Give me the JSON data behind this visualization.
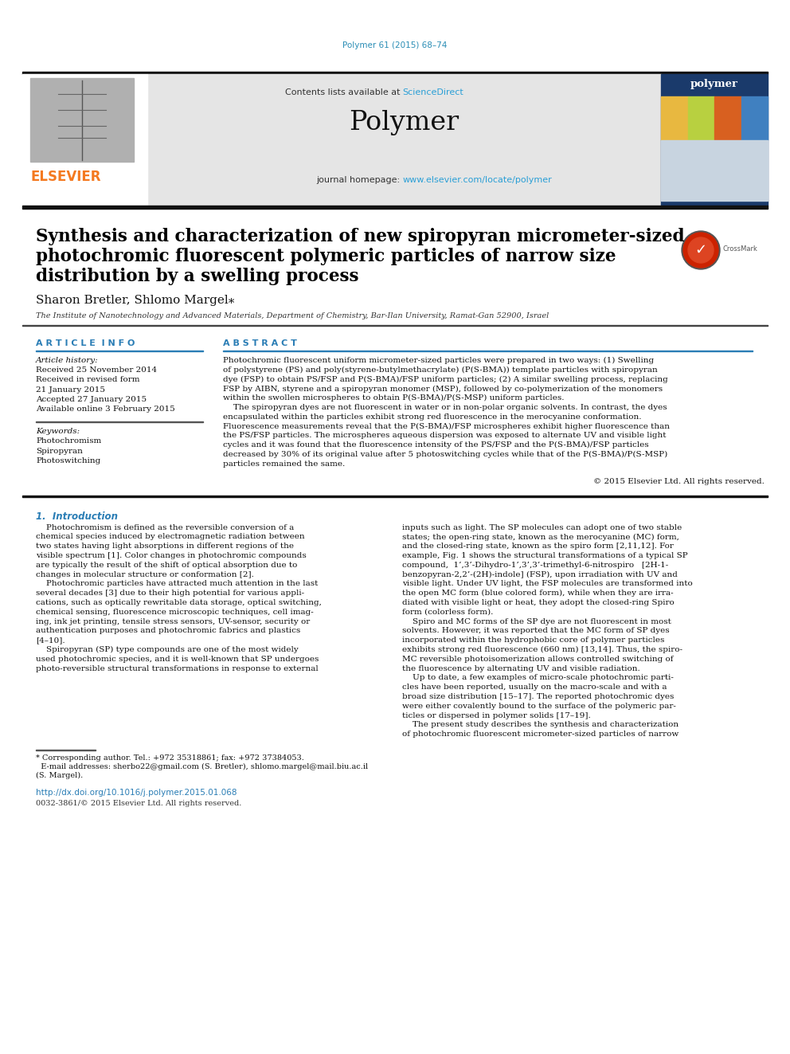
{
  "page_bg": "#ffffff",
  "journal_ref": "Polymer 61 (2015) 68–74",
  "journal_ref_color": "#2a8db5",
  "header_bg": "#e5e5e5",
  "sciencedirect_color": "#2a9fd6",
  "journal_homepage_url": "www.elsevier.com/locate/polymer",
  "journal_homepage_url_color": "#2a9fd6",
  "elsevier_color": "#f47920",
  "section_color": "#2a7db5",
  "title_line1": "Synthesis and characterization of new spiropyran micrometer-sized",
  "title_line2": "photochromic fluorescent polymeric particles of narrow size",
  "title_line3": "distribution by a swelling process",
  "title_fontsize": 15.5,
  "authors": "Sharon Bretler, Shlomo Margel",
  "authors_fontsize": 11,
  "affiliation": "The Institute of Nanotechnology and Advanced Materials, Department of Chemistry, Bar-Ilan University, Ramat-Gan 52900, Israel",
  "affiliation_fontsize": 7.0,
  "article_info_label": "A R T I C L E  I N F O",
  "abstract_label": "A B S T R A C T",
  "article_history_label": "Article history:",
  "received_label": "Received 25 November 2014",
  "revised_label": "Received in revised form",
  "revised_date": "21 January 2015",
  "accepted_label": "Accepted 27 January 2015",
  "available_label": "Available online 3 February 2015",
  "keywords_label": "Keywords:",
  "keyword1": "Photochromism",
  "keyword2": "Spiropyran",
  "keyword3": "Photoswitching",
  "copyright": "© 2015 Elsevier Ltd. All rights reserved.",
  "intro_header": "1.  Introduction",
  "doi_text": "http://dx.doi.org/10.1016/j.polymer.2015.01.068",
  "doi_color": "#2a7db5",
  "issn_text": "0032-3861/© 2015 Elsevier Ltd. All rights reserved.",
  "abstract_lines": [
    "Photochromic fluorescent uniform micrometer-sized particles were prepared in two ways: (1) Swelling",
    "of polystyrene (PS) and poly(styrene-butylmethacrylate) (P(S-BMA)) template particles with spiropyran",
    "dye (FSP) to obtain PS/FSP and P(S-BMA)/FSP uniform particles; (2) A similar swelling process, replacing",
    "FSP by AIBN, styrene and a spiropyran monomer (MSP), followed by co-polymerization of the monomers",
    "within the swollen microspheres to obtain P(S-BMA)/P(S-MSP) uniform particles.",
    "    The spiropyran dyes are not fluorescent in water or in non-polar organic solvents. In contrast, the dyes",
    "encapsulated within the particles exhibit strong red fluorescence in the merocyanine conformation.",
    "Fluorescence measurements reveal that the P(S-BMA)/FSP microspheres exhibit higher fluorescence than",
    "the PS/FSP particles. The microspheres aqueous dispersion was exposed to alternate UV and visible light",
    "cycles and it was found that the fluorescence intensity of the PS/FSP and the P(S-BMA)/FSP particles",
    "decreased by 30% of its original value after 5 photoswitching cycles while that of the P(S-BMA)/P(S-MSP)",
    "particles remained the same."
  ],
  "left_intro": [
    "    Photochromism is defined as the reversible conversion of a",
    "chemical species induced by electromagnetic radiation between",
    "two states having light absorptions in different regions of the",
    "visible spectrum [1]. Color changes in photochromic compounds",
    "are typically the result of the shift of optical absorption due to",
    "changes in molecular structure or conformation [2].",
    "    Photochromic particles have attracted much attention in the last",
    "several decades [3] due to their high potential for various appli-",
    "cations, such as optically rewritable data storage, optical switching,",
    "chemical sensing, fluorescence microscopic techniques, cell imag-",
    "ing, ink jet printing, tensile stress sensors, UV-sensor, security or",
    "authentication purposes and photochromic fabrics and plastics",
    "[4–10].",
    "    Spiropyran (SP) type compounds are one of the most widely",
    "used photochromic species, and it is well-known that SP undergoes",
    "photo-reversible structural transformations in response to external"
  ],
  "right_intro": [
    "inputs such as light. The SP molecules can adopt one of two stable",
    "states; the open-ring state, known as the merocyanine (MC) form,",
    "and the closed-ring state, known as the spiro form [2,11,12]. For",
    "example, Fig. 1 shows the structural transformations of a typical SP",
    "compound,  1’,3’-Dihydro-1’,3’,3’-trimethyl-6-nitrospiro   [2H-1-",
    "benzopyran-2,2’-(2H)-indole] (FSP), upon irradiation with UV and",
    "visible light. Under UV light, the FSP molecules are transformed into",
    "the open MC form (blue colored form), while when they are irra-",
    "diated with visible light or heat, they adopt the closed-ring Spiro",
    "form (colorless form).",
    "    Spiro and MC forms of the SP dye are not fluorescent in most",
    "solvents. However, it was reported that the MC form of SP dyes",
    "incorporated within the hydrophobic core of polymer particles",
    "exhibits strong red fluorescence (660 nm) [13,14]. Thus, the spiro-",
    "MC reversible photoisomerization allows controlled switching of",
    "the fluorescence by alternating UV and visible radiation.",
    "    Up to date, a few examples of micro-scale photochromic parti-",
    "cles have been reported, usually on the macro-scale and with a",
    "broad size distribution [15–17]. The reported photochromic dyes",
    "were either covalently bound to the surface of the polymeric par-",
    "ticles or dispersed in polymer solids [17–19].",
    "    The present study describes the synthesis and characterization",
    "of photochromic fluorescent micrometer-sized particles of narrow"
  ],
  "footnote_lines": [
    "* Corresponding author. Tel.: +972 35318861; fax: +972 37384053.",
    "  E-mail addresses: sherbo22@gmail.com (S. Bretler), shlomo.margel@mail.biu.ac.il",
    "(S. Margel)."
  ]
}
